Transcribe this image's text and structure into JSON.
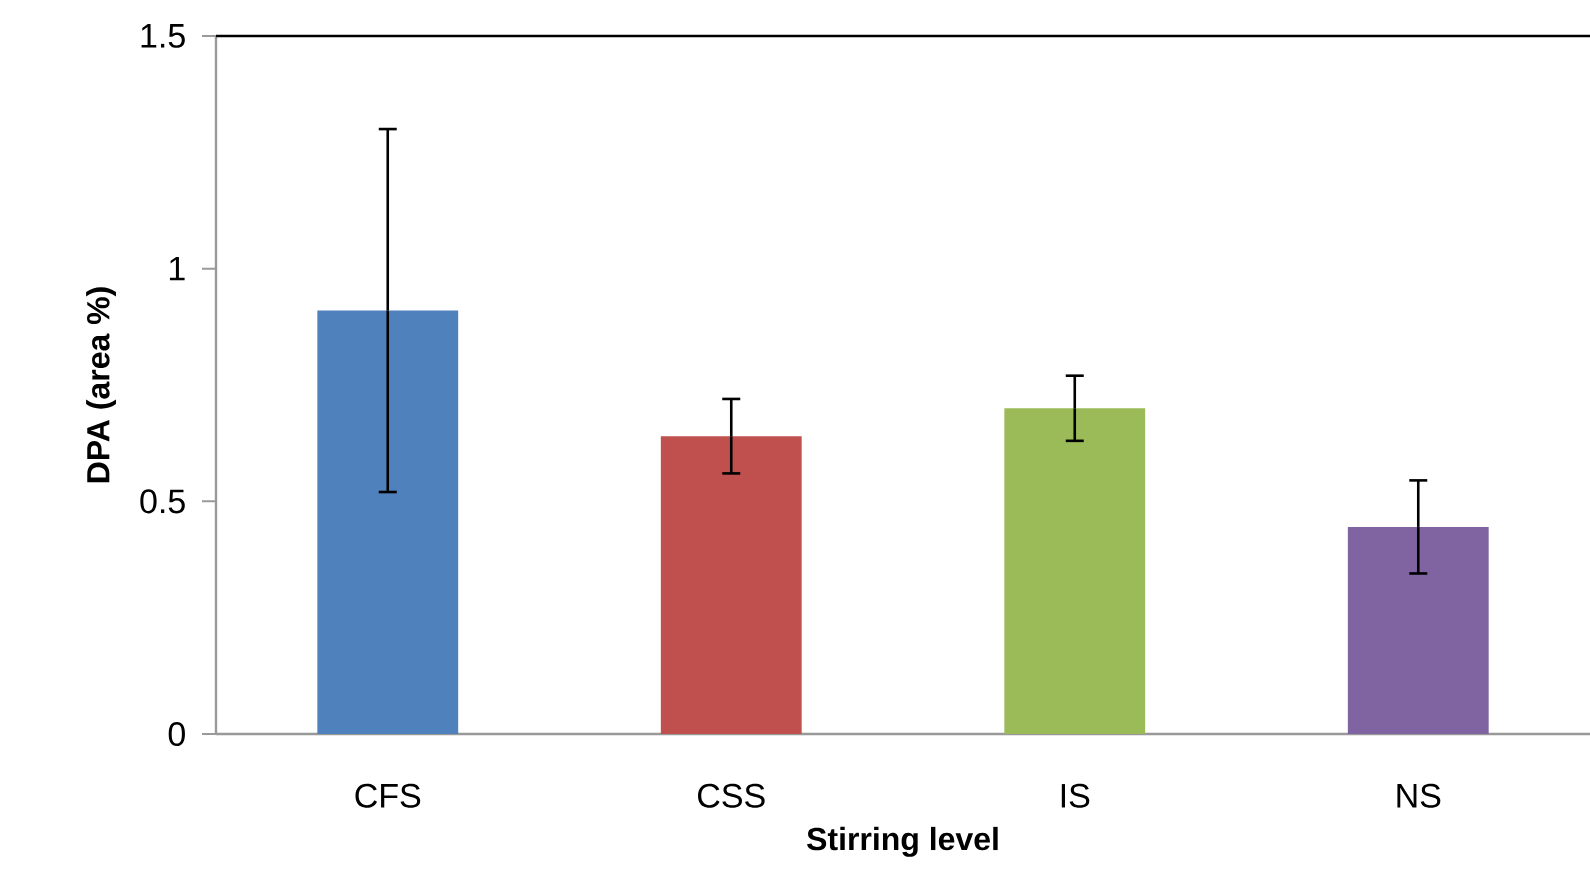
{
  "chart_data": {
    "type": "bar",
    "xlabel": "Stirring level",
    "ylabel": "DPA (area %)",
    "categories": [
      "CFS",
      "CSS",
      "IS",
      "NS"
    ],
    "values": [
      0.91,
      0.64,
      0.7,
      0.445
    ],
    "colors": [
      "#4f81bd",
      "#c0504d",
      "#9bbb59",
      "#8064a2"
    ],
    "errors": [
      0.39,
      0.08,
      0.07,
      0.1
    ],
    "ylim": [
      0,
      1.5
    ],
    "yticks": [
      0,
      0.5,
      1,
      1.5
    ]
  }
}
